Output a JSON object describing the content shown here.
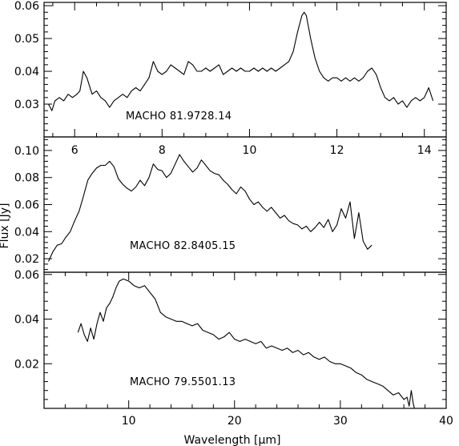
{
  "figure": {
    "xlabel": "Wavelength [µm]",
    "ylabel": "Flux [Jy]"
  },
  "chart_data": [
    {
      "type": "line",
      "annotation": "MACHO 81.9728.14",
      "xlim": [
        5.3,
        14.5
      ],
      "ylim": [
        0.02,
        0.061
      ],
      "x_ticks": [
        6,
        8,
        10,
        12,
        14
      ],
      "y_ticks": [
        0.03,
        0.04,
        0.05,
        0.06
      ],
      "y_tick_labels": [
        "0.03",
        "0.04",
        "0.05",
        "0.06"
      ],
      "series": [
        {
          "points": [
            [
              5.4,
              0.03
            ],
            [
              5.48,
              0.028
            ],
            [
              5.55,
              0.031
            ],
            [
              5.65,
              0.032
            ],
            [
              5.75,
              0.031
            ],
            [
              5.85,
              0.033
            ],
            [
              5.95,
              0.032
            ],
            [
              6.05,
              0.033
            ],
            [
              6.12,
              0.034
            ],
            [
              6.2,
              0.04
            ],
            [
              6.28,
              0.038
            ],
            [
              6.4,
              0.033
            ],
            [
              6.5,
              0.034
            ],
            [
              6.6,
              0.032
            ],
            [
              6.7,
              0.031
            ],
            [
              6.8,
              0.029
            ],
            [
              6.9,
              0.031
            ],
            [
              7.0,
              0.032
            ],
            [
              7.1,
              0.033
            ],
            [
              7.2,
              0.032
            ],
            [
              7.3,
              0.034
            ],
            [
              7.4,
              0.035
            ],
            [
              7.5,
              0.034
            ],
            [
              7.6,
              0.036
            ],
            [
              7.7,
              0.038
            ],
            [
              7.8,
              0.043
            ],
            [
              7.9,
              0.04
            ],
            [
              8.0,
              0.039
            ],
            [
              8.1,
              0.04
            ],
            [
              8.2,
              0.042
            ],
            [
              8.3,
              0.041
            ],
            [
              8.4,
              0.04
            ],
            [
              8.5,
              0.039
            ],
            [
              8.6,
              0.043
            ],
            [
              8.7,
              0.042
            ],
            [
              8.8,
              0.04
            ],
            [
              8.9,
              0.04
            ],
            [
              9.0,
              0.041
            ],
            [
              9.1,
              0.04
            ],
            [
              9.2,
              0.041
            ],
            [
              9.3,
              0.042
            ],
            [
              9.4,
              0.039
            ],
            [
              9.5,
              0.04
            ],
            [
              9.6,
              0.041
            ],
            [
              9.7,
              0.04
            ],
            [
              9.8,
              0.041
            ],
            [
              9.9,
              0.04
            ],
            [
              10.0,
              0.04
            ],
            [
              10.1,
              0.041
            ],
            [
              10.2,
              0.04
            ],
            [
              10.3,
              0.041
            ],
            [
              10.4,
              0.04
            ],
            [
              10.5,
              0.041
            ],
            [
              10.6,
              0.04
            ],
            [
              10.7,
              0.041
            ],
            [
              10.8,
              0.042
            ],
            [
              10.9,
              0.043
            ],
            [
              11.0,
              0.046
            ],
            [
              11.1,
              0.052
            ],
            [
              11.2,
              0.057
            ],
            [
              11.25,
              0.058
            ],
            [
              11.3,
              0.057
            ],
            [
              11.4,
              0.05
            ],
            [
              11.5,
              0.044
            ],
            [
              11.6,
              0.04
            ],
            [
              11.7,
              0.038
            ],
            [
              11.8,
              0.037
            ],
            [
              11.9,
              0.038
            ],
            [
              12.0,
              0.038
            ],
            [
              12.1,
              0.037
            ],
            [
              12.2,
              0.038
            ],
            [
              12.3,
              0.037
            ],
            [
              12.4,
              0.038
            ],
            [
              12.5,
              0.037
            ],
            [
              12.6,
              0.038
            ],
            [
              12.7,
              0.04
            ],
            [
              12.8,
              0.041
            ],
            [
              12.9,
              0.039
            ],
            [
              13.0,
              0.035
            ],
            [
              13.1,
              0.032
            ],
            [
              13.2,
              0.031
            ],
            [
              13.3,
              0.032
            ],
            [
              13.4,
              0.03
            ],
            [
              13.5,
              0.031
            ],
            [
              13.6,
              0.029
            ],
            [
              13.7,
              0.031
            ],
            [
              13.8,
              0.032
            ],
            [
              13.9,
              0.031
            ],
            [
              14.0,
              0.032
            ],
            [
              14.1,
              0.035
            ],
            [
              14.2,
              0.031
            ]
          ]
        }
      ]
    },
    {
      "type": "line",
      "annotation": "MACHO 82.8405.15",
      "xlim": [
        5.3,
        14.5
      ],
      "ylim": [
        0.01,
        0.11
      ],
      "x_ticks": [],
      "y_ticks": [
        0.02,
        0.04,
        0.06,
        0.08,
        0.1
      ],
      "y_tick_labels": [
        "0.02",
        "0.04",
        "0.06",
        "0.08",
        "0.10"
      ],
      "series": [
        {
          "points": [
            [
              5.4,
              0.018
            ],
            [
              5.5,
              0.025
            ],
            [
              5.6,
              0.03
            ],
            [
              5.7,
              0.031
            ],
            [
              5.8,
              0.036
            ],
            [
              5.9,
              0.04
            ],
            [
              6.0,
              0.048
            ],
            [
              6.1,
              0.055
            ],
            [
              6.2,
              0.066
            ],
            [
              6.3,
              0.078
            ],
            [
              6.4,
              0.083
            ],
            [
              6.5,
              0.087
            ],
            [
              6.6,
              0.089
            ],
            [
              6.7,
              0.089
            ],
            [
              6.8,
              0.092
            ],
            [
              6.9,
              0.088
            ],
            [
              7.0,
              0.079
            ],
            [
              7.1,
              0.075
            ],
            [
              7.2,
              0.072
            ],
            [
              7.3,
              0.07
            ],
            [
              7.4,
              0.073
            ],
            [
              7.5,
              0.078
            ],
            [
              7.6,
              0.074
            ],
            [
              7.7,
              0.08
            ],
            [
              7.8,
              0.09
            ],
            [
              7.9,
              0.086
            ],
            [
              8.0,
              0.085
            ],
            [
              8.1,
              0.08
            ],
            [
              8.2,
              0.083
            ],
            [
              8.3,
              0.09
            ],
            [
              8.4,
              0.097
            ],
            [
              8.5,
              0.092
            ],
            [
              8.6,
              0.088
            ],
            [
              8.7,
              0.084
            ],
            [
              8.8,
              0.087
            ],
            [
              8.9,
              0.093
            ],
            [
              9.0,
              0.089
            ],
            [
              9.1,
              0.085
            ],
            [
              9.2,
              0.083
            ],
            [
              9.3,
              0.082
            ],
            [
              9.4,
              0.078
            ],
            [
              9.5,
              0.075
            ],
            [
              9.6,
              0.071
            ],
            [
              9.7,
              0.068
            ],
            [
              9.8,
              0.073
            ],
            [
              9.9,
              0.07
            ],
            [
              10.0,
              0.064
            ],
            [
              10.1,
              0.06
            ],
            [
              10.2,
              0.062
            ],
            [
              10.3,
              0.058
            ],
            [
              10.4,
              0.055
            ],
            [
              10.5,
              0.058
            ],
            [
              10.6,
              0.054
            ],
            [
              10.7,
              0.05
            ],
            [
              10.8,
              0.052
            ],
            [
              10.9,
              0.048
            ],
            [
              11.0,
              0.046
            ],
            [
              11.1,
              0.045
            ],
            [
              11.2,
              0.042
            ],
            [
              11.3,
              0.044
            ],
            [
              11.4,
              0.04
            ],
            [
              11.5,
              0.043
            ],
            [
              11.6,
              0.047
            ],
            [
              11.7,
              0.043
            ],
            [
              11.8,
              0.049
            ],
            [
              11.9,
              0.04
            ],
            [
              12.0,
              0.045
            ],
            [
              12.1,
              0.057
            ],
            [
              12.2,
              0.05
            ],
            [
              12.3,
              0.062
            ],
            [
              12.4,
              0.035
            ],
            [
              12.5,
              0.054
            ],
            [
              12.6,
              0.033
            ],
            [
              12.7,
              0.027
            ],
            [
              12.8,
              0.03
            ]
          ]
        }
      ]
    },
    {
      "type": "line",
      "annotation": "MACHO 79.5501.13",
      "xlim": [
        2,
        40
      ],
      "ylim": [
        0.0,
        0.061
      ],
      "x_ticks": [
        10,
        20,
        30,
        40
      ],
      "y_ticks": [
        0.02,
        0.04,
        0.06
      ],
      "y_tick_labels": [
        "0.02",
        "0.04",
        "0.06"
      ],
      "series": [
        {
          "points": [
            [
              5.2,
              0.034
            ],
            [
              5.5,
              0.038
            ],
            [
              5.8,
              0.033
            ],
            [
              6.1,
              0.03
            ],
            [
              6.4,
              0.036
            ],
            [
              6.7,
              0.031
            ],
            [
              7.0,
              0.038
            ],
            [
              7.3,
              0.043
            ],
            [
              7.6,
              0.039
            ],
            [
              7.9,
              0.045
            ],
            [
              8.2,
              0.047
            ],
            [
              8.5,
              0.05
            ],
            [
              8.8,
              0.054
            ],
            [
              9.1,
              0.057
            ],
            [
              9.5,
              0.058
            ],
            [
              10.0,
              0.057
            ],
            [
              10.5,
              0.055
            ],
            [
              11.0,
              0.054
            ],
            [
              11.5,
              0.055
            ],
            [
              12.0,
              0.052
            ],
            [
              12.5,
              0.049
            ],
            [
              13.0,
              0.043
            ],
            [
              13.5,
              0.041
            ],
            [
              14.0,
              0.04
            ],
            [
              14.5,
              0.039
            ],
            [
              15.0,
              0.039
            ],
            [
              15.5,
              0.038
            ],
            [
              16.0,
              0.037
            ],
            [
              16.5,
              0.038
            ],
            [
              17.0,
              0.035
            ],
            [
              17.5,
              0.034
            ],
            [
              18.0,
              0.033
            ],
            [
              18.5,
              0.031
            ],
            [
              19.0,
              0.032
            ],
            [
              19.5,
              0.034
            ],
            [
              20.0,
              0.031
            ],
            [
              20.5,
              0.03
            ],
            [
              21.0,
              0.031
            ],
            [
              21.5,
              0.03
            ],
            [
              22.0,
              0.029
            ],
            [
              22.5,
              0.03
            ],
            [
              23.0,
              0.027
            ],
            [
              23.5,
              0.028
            ],
            [
              24.0,
              0.027
            ],
            [
              24.5,
              0.026
            ],
            [
              25.0,
              0.027
            ],
            [
              25.5,
              0.025
            ],
            [
              26.0,
              0.026
            ],
            [
              26.5,
              0.024
            ],
            [
              27.0,
              0.025
            ],
            [
              27.5,
              0.023
            ],
            [
              28.0,
              0.022
            ],
            [
              28.5,
              0.023
            ],
            [
              29.0,
              0.021
            ],
            [
              29.5,
              0.02
            ],
            [
              30.0,
              0.02
            ],
            [
              30.5,
              0.019
            ],
            [
              31.0,
              0.018
            ],
            [
              31.5,
              0.016
            ],
            [
              32.0,
              0.015
            ],
            [
              32.5,
              0.013
            ],
            [
              33.0,
              0.012
            ],
            [
              33.5,
              0.011
            ],
            [
              34.0,
              0.01
            ],
            [
              34.5,
              0.008
            ],
            [
              35.0,
              0.006
            ],
            [
              35.5,
              0.007
            ],
            [
              36.0,
              0.004
            ],
            [
              36.3,
              0.005
            ],
            [
              36.5,
              0.001
            ],
            [
              36.7,
              0.008
            ],
            [
              36.9,
              0.002
            ],
            [
              37.1,
              -0.002
            ]
          ]
        }
      ]
    }
  ]
}
